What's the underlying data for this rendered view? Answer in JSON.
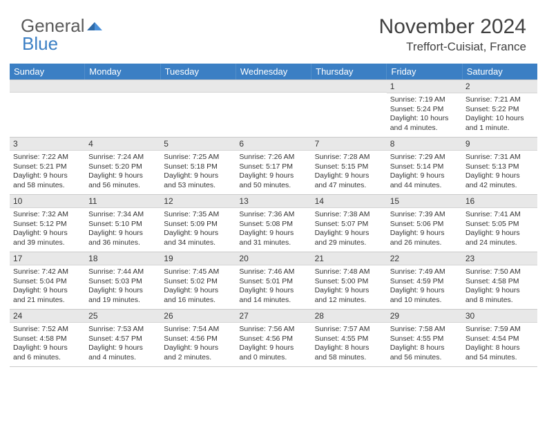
{
  "brand": {
    "part1": "General",
    "part2": "Blue"
  },
  "title": "November 2024",
  "location": "Treffort-Cuisiat, France",
  "colors": {
    "header_bar": "#3b7fc4",
    "daynum_bg": "#e8e8e8",
    "text": "#333333",
    "brand_gray": "#5a5a5a",
    "brand_blue": "#3b7fc4"
  },
  "weekdays": [
    "Sunday",
    "Monday",
    "Tuesday",
    "Wednesday",
    "Thursday",
    "Friday",
    "Saturday"
  ],
  "weeks": [
    [
      {
        "blank": true
      },
      {
        "blank": true
      },
      {
        "blank": true
      },
      {
        "blank": true
      },
      {
        "blank": true
      },
      {
        "n": "1",
        "sr": "Sunrise: 7:19 AM",
        "ss": "Sunset: 5:24 PM",
        "dl1": "Daylight: 10 hours",
        "dl2": "and 4 minutes."
      },
      {
        "n": "2",
        "sr": "Sunrise: 7:21 AM",
        "ss": "Sunset: 5:22 PM",
        "dl1": "Daylight: 10 hours",
        "dl2": "and 1 minute."
      }
    ],
    [
      {
        "n": "3",
        "sr": "Sunrise: 7:22 AM",
        "ss": "Sunset: 5:21 PM",
        "dl1": "Daylight: 9 hours",
        "dl2": "and 58 minutes."
      },
      {
        "n": "4",
        "sr": "Sunrise: 7:24 AM",
        "ss": "Sunset: 5:20 PM",
        "dl1": "Daylight: 9 hours",
        "dl2": "and 56 minutes."
      },
      {
        "n": "5",
        "sr": "Sunrise: 7:25 AM",
        "ss": "Sunset: 5:18 PM",
        "dl1": "Daylight: 9 hours",
        "dl2": "and 53 minutes."
      },
      {
        "n": "6",
        "sr": "Sunrise: 7:26 AM",
        "ss": "Sunset: 5:17 PM",
        "dl1": "Daylight: 9 hours",
        "dl2": "and 50 minutes."
      },
      {
        "n": "7",
        "sr": "Sunrise: 7:28 AM",
        "ss": "Sunset: 5:15 PM",
        "dl1": "Daylight: 9 hours",
        "dl2": "and 47 minutes."
      },
      {
        "n": "8",
        "sr": "Sunrise: 7:29 AM",
        "ss": "Sunset: 5:14 PM",
        "dl1": "Daylight: 9 hours",
        "dl2": "and 44 minutes."
      },
      {
        "n": "9",
        "sr": "Sunrise: 7:31 AM",
        "ss": "Sunset: 5:13 PM",
        "dl1": "Daylight: 9 hours",
        "dl2": "and 42 minutes."
      }
    ],
    [
      {
        "n": "10",
        "sr": "Sunrise: 7:32 AM",
        "ss": "Sunset: 5:12 PM",
        "dl1": "Daylight: 9 hours",
        "dl2": "and 39 minutes."
      },
      {
        "n": "11",
        "sr": "Sunrise: 7:34 AM",
        "ss": "Sunset: 5:10 PM",
        "dl1": "Daylight: 9 hours",
        "dl2": "and 36 minutes."
      },
      {
        "n": "12",
        "sr": "Sunrise: 7:35 AM",
        "ss": "Sunset: 5:09 PM",
        "dl1": "Daylight: 9 hours",
        "dl2": "and 34 minutes."
      },
      {
        "n": "13",
        "sr": "Sunrise: 7:36 AM",
        "ss": "Sunset: 5:08 PM",
        "dl1": "Daylight: 9 hours",
        "dl2": "and 31 minutes."
      },
      {
        "n": "14",
        "sr": "Sunrise: 7:38 AM",
        "ss": "Sunset: 5:07 PM",
        "dl1": "Daylight: 9 hours",
        "dl2": "and 29 minutes."
      },
      {
        "n": "15",
        "sr": "Sunrise: 7:39 AM",
        "ss": "Sunset: 5:06 PM",
        "dl1": "Daylight: 9 hours",
        "dl2": "and 26 minutes."
      },
      {
        "n": "16",
        "sr": "Sunrise: 7:41 AM",
        "ss": "Sunset: 5:05 PM",
        "dl1": "Daylight: 9 hours",
        "dl2": "and 24 minutes."
      }
    ],
    [
      {
        "n": "17",
        "sr": "Sunrise: 7:42 AM",
        "ss": "Sunset: 5:04 PM",
        "dl1": "Daylight: 9 hours",
        "dl2": "and 21 minutes."
      },
      {
        "n": "18",
        "sr": "Sunrise: 7:44 AM",
        "ss": "Sunset: 5:03 PM",
        "dl1": "Daylight: 9 hours",
        "dl2": "and 19 minutes."
      },
      {
        "n": "19",
        "sr": "Sunrise: 7:45 AM",
        "ss": "Sunset: 5:02 PM",
        "dl1": "Daylight: 9 hours",
        "dl2": "and 16 minutes."
      },
      {
        "n": "20",
        "sr": "Sunrise: 7:46 AM",
        "ss": "Sunset: 5:01 PM",
        "dl1": "Daylight: 9 hours",
        "dl2": "and 14 minutes."
      },
      {
        "n": "21",
        "sr": "Sunrise: 7:48 AM",
        "ss": "Sunset: 5:00 PM",
        "dl1": "Daylight: 9 hours",
        "dl2": "and 12 minutes."
      },
      {
        "n": "22",
        "sr": "Sunrise: 7:49 AM",
        "ss": "Sunset: 4:59 PM",
        "dl1": "Daylight: 9 hours",
        "dl2": "and 10 minutes."
      },
      {
        "n": "23",
        "sr": "Sunrise: 7:50 AM",
        "ss": "Sunset: 4:58 PM",
        "dl1": "Daylight: 9 hours",
        "dl2": "and 8 minutes."
      }
    ],
    [
      {
        "n": "24",
        "sr": "Sunrise: 7:52 AM",
        "ss": "Sunset: 4:58 PM",
        "dl1": "Daylight: 9 hours",
        "dl2": "and 6 minutes."
      },
      {
        "n": "25",
        "sr": "Sunrise: 7:53 AM",
        "ss": "Sunset: 4:57 PM",
        "dl1": "Daylight: 9 hours",
        "dl2": "and 4 minutes."
      },
      {
        "n": "26",
        "sr": "Sunrise: 7:54 AM",
        "ss": "Sunset: 4:56 PM",
        "dl1": "Daylight: 9 hours",
        "dl2": "and 2 minutes."
      },
      {
        "n": "27",
        "sr": "Sunrise: 7:56 AM",
        "ss": "Sunset: 4:56 PM",
        "dl1": "Daylight: 9 hours",
        "dl2": "and 0 minutes."
      },
      {
        "n": "28",
        "sr": "Sunrise: 7:57 AM",
        "ss": "Sunset: 4:55 PM",
        "dl1": "Daylight: 8 hours",
        "dl2": "and 58 minutes."
      },
      {
        "n": "29",
        "sr": "Sunrise: 7:58 AM",
        "ss": "Sunset: 4:55 PM",
        "dl1": "Daylight: 8 hours",
        "dl2": "and 56 minutes."
      },
      {
        "n": "30",
        "sr": "Sunrise: 7:59 AM",
        "ss": "Sunset: 4:54 PM",
        "dl1": "Daylight: 8 hours",
        "dl2": "and 54 minutes."
      }
    ]
  ]
}
